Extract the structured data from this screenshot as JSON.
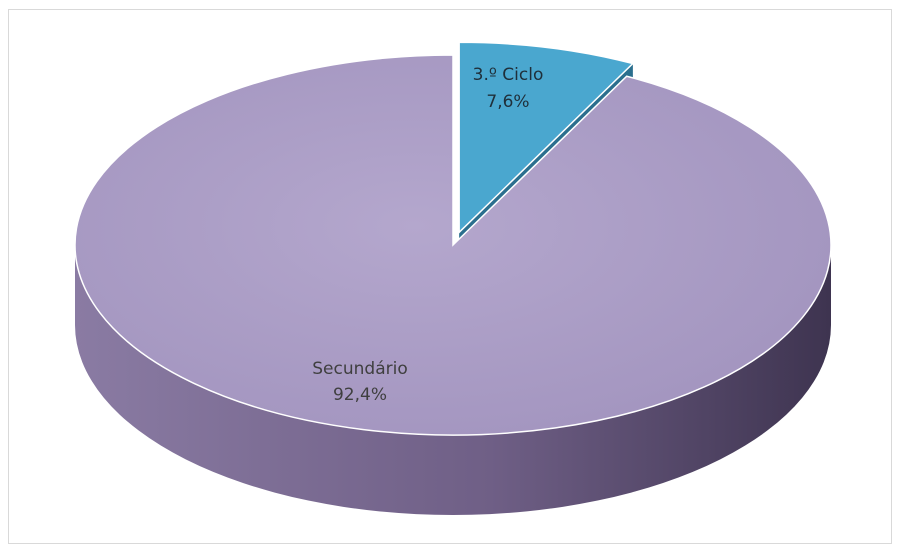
{
  "chart_data": {
    "type": "pie",
    "style": "3d-exploded",
    "slices": [
      {
        "name": "Secundário",
        "value": 92.4,
        "label": "92,4%",
        "color": "#a99bc4",
        "side_color": "#6f5f86"
      },
      {
        "name": "3.º Ciclo",
        "value": 7.6,
        "label": "7,6%",
        "color": "#4aa7cf",
        "side_color": "#2b6f8e"
      }
    ],
    "legend": "none",
    "title": ""
  }
}
